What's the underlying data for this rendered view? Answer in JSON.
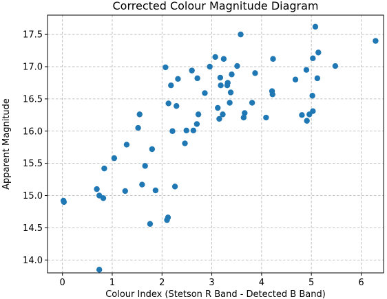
{
  "chart_data": {
    "type": "scatter",
    "title": "Corrected Colour Magnitude Diagram",
    "xlabel": "Colour Index (Stetson R Band - Detected B Band)",
    "ylabel": "Apparent Magnitude",
    "xlim": [
      -0.3,
      6.45
    ],
    "ylim": [
      13.8,
      17.8
    ],
    "x_ticks": [
      0,
      1,
      2,
      3,
      4,
      5,
      6
    ],
    "y_ticks": [
      14.0,
      14.5,
      15.0,
      15.5,
      16.0,
      16.5,
      17.0,
      17.5
    ],
    "x_tick_labels": [
      "0",
      "1",
      "2",
      "3",
      "4",
      "5",
      "6"
    ],
    "y_tick_labels": [
      "14.0",
      "14.5",
      "15.0",
      "15.5",
      "16.0",
      "16.5",
      "17.0",
      "17.5"
    ],
    "grid": true,
    "marker_color": "#1f77b4",
    "points": [
      {
        "x": 0.02,
        "y": 14.92
      },
      {
        "x": 0.03,
        "y": 14.9
      },
      {
        "x": 0.69,
        "y": 15.1
      },
      {
        "x": 0.74,
        "y": 15.0
      },
      {
        "x": 0.74,
        "y": 13.85
      },
      {
        "x": 0.82,
        "y": 14.96
      },
      {
        "x": 0.84,
        "y": 15.42
      },
      {
        "x": 1.04,
        "y": 15.58
      },
      {
        "x": 1.26,
        "y": 15.07
      },
      {
        "x": 1.29,
        "y": 15.79
      },
      {
        "x": 1.52,
        "y": 16.05
      },
      {
        "x": 1.55,
        "y": 16.26
      },
      {
        "x": 1.6,
        "y": 15.17
      },
      {
        "x": 1.66,
        "y": 15.46
      },
      {
        "x": 1.76,
        "y": 14.56
      },
      {
        "x": 1.8,
        "y": 15.72
      },
      {
        "x": 1.87,
        "y": 15.08
      },
      {
        "x": 2.07,
        "y": 16.99
      },
      {
        "x": 2.1,
        "y": 14.62
      },
      {
        "x": 2.12,
        "y": 14.66
      },
      {
        "x": 2.13,
        "y": 16.43
      },
      {
        "x": 2.18,
        "y": 16.71
      },
      {
        "x": 2.21,
        "y": 16.0
      },
      {
        "x": 2.26,
        "y": 15.14
      },
      {
        "x": 2.29,
        "y": 16.39
      },
      {
        "x": 2.32,
        "y": 16.81
      },
      {
        "x": 2.46,
        "y": 15.81
      },
      {
        "x": 2.49,
        "y": 16.01
      },
      {
        "x": 2.6,
        "y": 16.94
      },
      {
        "x": 2.63,
        "y": 16.01
      },
      {
        "x": 2.7,
        "y": 16.11
      },
      {
        "x": 2.71,
        "y": 16.82
      },
      {
        "x": 2.73,
        "y": 16.26
      },
      {
        "x": 2.86,
        "y": 16.59
      },
      {
        "x": 2.96,
        "y": 17.0
      },
      {
        "x": 3.07,
        "y": 17.15
      },
      {
        "x": 3.12,
        "y": 16.36
      },
      {
        "x": 3.15,
        "y": 16.19
      },
      {
        "x": 3.17,
        "y": 16.83
      },
      {
        "x": 3.18,
        "y": 16.71
      },
      {
        "x": 3.22,
        "y": 16.26
      },
      {
        "x": 3.24,
        "y": 17.12
      },
      {
        "x": 3.31,
        "y": 16.71
      },
      {
        "x": 3.32,
        "y": 16.75
      },
      {
        "x": 3.36,
        "y": 16.44
      },
      {
        "x": 3.38,
        "y": 16.6
      },
      {
        "x": 3.4,
        "y": 16.88
      },
      {
        "x": 3.51,
        "y": 17.01
      },
      {
        "x": 3.58,
        "y": 17.5
      },
      {
        "x": 3.64,
        "y": 16.21
      },
      {
        "x": 3.66,
        "y": 16.28
      },
      {
        "x": 3.81,
        "y": 16.44
      },
      {
        "x": 3.87,
        "y": 16.9
      },
      {
        "x": 4.09,
        "y": 16.21
      },
      {
        "x": 4.21,
        "y": 16.62
      },
      {
        "x": 4.22,
        "y": 16.57
      },
      {
        "x": 4.23,
        "y": 17.12
      },
      {
        "x": 4.68,
        "y": 16.8
      },
      {
        "x": 4.81,
        "y": 16.25
      },
      {
        "x": 4.9,
        "y": 16.95
      },
      {
        "x": 4.91,
        "y": 16.16
      },
      {
        "x": 4.96,
        "y": 16.26
      },
      {
        "x": 5.02,
        "y": 16.55
      },
      {
        "x": 5.03,
        "y": 16.31
      },
      {
        "x": 5.03,
        "y": 17.13
      },
      {
        "x": 5.08,
        "y": 17.62
      },
      {
        "x": 5.12,
        "y": 16.82
      },
      {
        "x": 5.14,
        "y": 17.22
      },
      {
        "x": 5.48,
        "y": 17.01
      },
      {
        "x": 6.29,
        "y": 17.4
      }
    ]
  }
}
